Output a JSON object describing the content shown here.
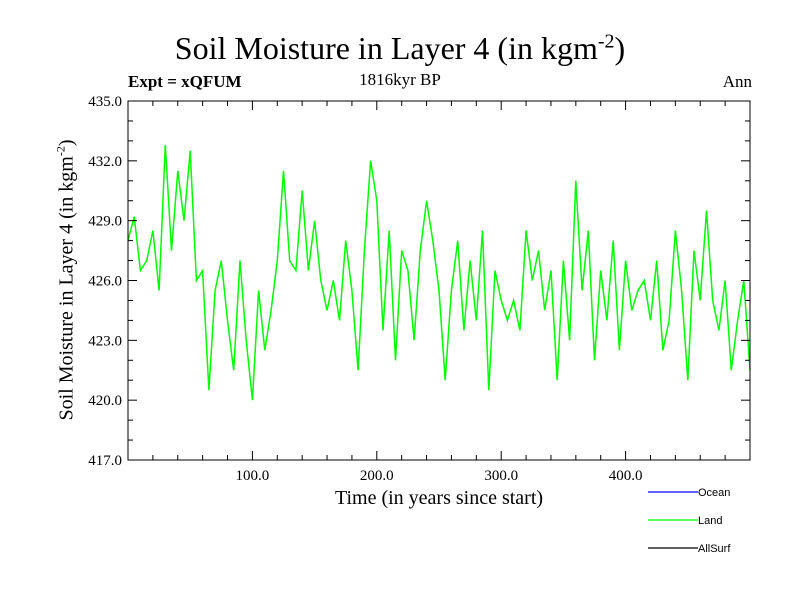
{
  "title": {
    "main": "Soil Moisture in Layer 4 (in kgm",
    "sup": "-2",
    "close": ")"
  },
  "subtitle_left": "Expt = xQFUM",
  "subtitle_center": "1816kyr BP",
  "subtitle_right": "Ann",
  "chart_data": {
    "type": "line",
    "title": "Soil Moisture in Layer 4 (in kgm-2)",
    "xlabel": "Time (in years since start)",
    "ylabel": "Soil Moisture in Layer 4 (in kgm-2)",
    "xlim": [
      0,
      500
    ],
    "ylim": [
      417,
      435
    ],
    "xticks": [
      100,
      200,
      300,
      400
    ],
    "xtick_labels": [
      "100.0",
      "200.0",
      "300.0",
      "400.0"
    ],
    "yticks": [
      417,
      420,
      423,
      426,
      429,
      432,
      435
    ],
    "ytick_labels": [
      "417.0",
      "420.0",
      "423.0",
      "426.0",
      "429.0",
      "432.0",
      "435.0"
    ],
    "legend": [
      {
        "name": "Ocean",
        "color": "#0000ff"
      },
      {
        "name": "Land",
        "color": "#00ff00"
      },
      {
        "name": "AllSurf",
        "color": "#000000"
      }
    ],
    "series": [
      {
        "name": "Land",
        "color": "#00ff00",
        "x": [
          0,
          5,
          10,
          15,
          20,
          25,
          30,
          35,
          40,
          45,
          50,
          55,
          60,
          65,
          70,
          75,
          80,
          85,
          90,
          95,
          100,
          105,
          110,
          115,
          120,
          125,
          130,
          135,
          140,
          145,
          150,
          155,
          160,
          165,
          170,
          175,
          180,
          185,
          190,
          195,
          200,
          205,
          210,
          215,
          220,
          225,
          230,
          235,
          240,
          245,
          250,
          255,
          260,
          265,
          270,
          275,
          280,
          285,
          290,
          295,
          300,
          305,
          310,
          315,
          320,
          325,
          330,
          335,
          340,
          345,
          350,
          355,
          360,
          365,
          370,
          375,
          380,
          385,
          390,
          395,
          400,
          405,
          410,
          415,
          420,
          425,
          430,
          435,
          440,
          445,
          450,
          455,
          460,
          465,
          470,
          475,
          480,
          485,
          490,
          495,
          500
        ],
        "values": [
          428.0,
          429.2,
          426.5,
          427.0,
          428.5,
          425.5,
          432.8,
          427.5,
          431.5,
          429.0,
          432.5,
          426.0,
          426.5,
          420.5,
          425.5,
          427.0,
          424.0,
          421.5,
          427.0,
          423.0,
          420.0,
          425.5,
          422.5,
          424.5,
          427.0,
          431.5,
          427.0,
          426.5,
          430.5,
          426.5,
          429.0,
          426.0,
          424.5,
          426.0,
          424.0,
          428.0,
          425.5,
          421.5,
          427.5,
          432.0,
          430.0,
          423.5,
          428.5,
          422.0,
          427.5,
          426.5,
          423.0,
          427.5,
          430.0,
          428.0,
          425.5,
          421.0,
          425.5,
          428.0,
          423.5,
          427.0,
          424.0,
          428.5,
          420.5,
          426.5,
          425.0,
          424.0,
          425.0,
          423.5,
          428.5,
          426.0,
          427.5,
          424.5,
          426.5,
          421.0,
          427.0,
          423.0,
          431.0,
          425.5,
          428.5,
          422.0,
          426.5,
          424.0,
          428.0,
          422.5,
          427.0,
          424.5,
          425.5,
          426.0,
          424.0,
          427.0,
          422.5,
          424.0,
          428.5,
          425.5,
          421.0,
          427.5,
          425.0,
          429.5,
          425.0,
          423.5,
          426.0,
          421.5,
          424.0,
          426.0,
          421.5
        ]
      }
    ]
  }
}
